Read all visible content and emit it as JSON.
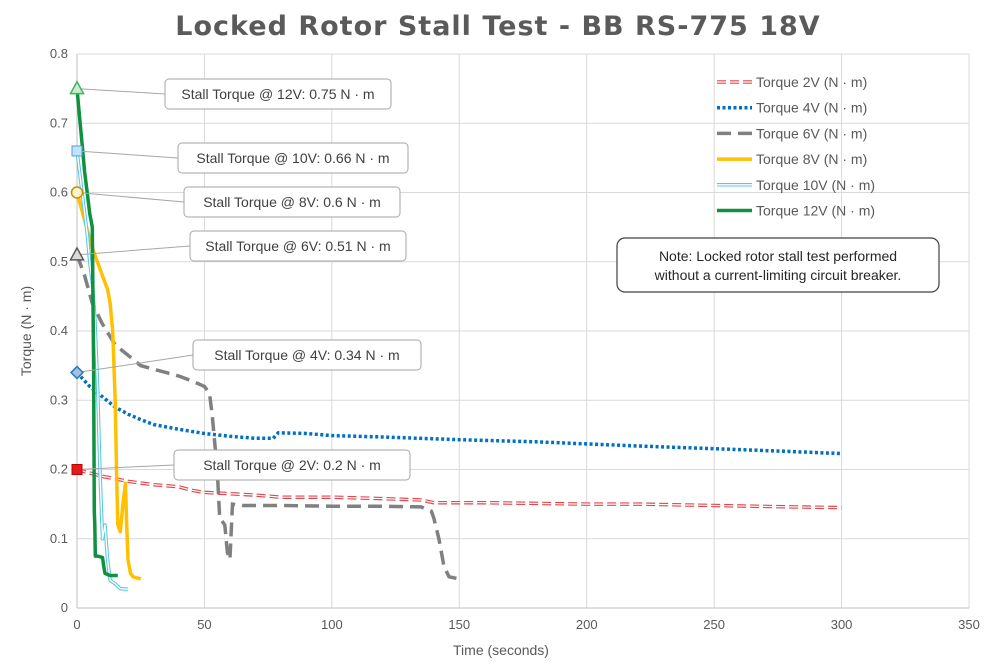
{
  "chart_data": {
    "type": "line",
    "title": "Locked Rotor Stall Test - BB RS-775 18V",
    "xlabel": "Time (seconds)",
    "ylabel": "Torque (N · m)",
    "xlim": [
      0,
      350
    ],
    "ylim": [
      0,
      0.8
    ],
    "x_ticks": [
      0,
      50,
      100,
      150,
      200,
      250,
      300,
      350
    ],
    "y_ticks": [
      0,
      0.1,
      0.2,
      0.3,
      0.4,
      0.5,
      0.6,
      0.7,
      0.8
    ],
    "grid": true,
    "legend_position": "top-right",
    "note": "Note: Locked rotor stall test performed\nwithout a current-limiting circuit breaker.",
    "series": [
      {
        "name": "Torque 2V (N · m)",
        "color": "#e0474c",
        "style": "double-dash",
        "marker": "square",
        "marker_color": "#e21b1b",
        "points": [
          [
            0,
            0.2
          ],
          [
            5,
            0.195
          ],
          [
            10,
            0.19
          ],
          [
            20,
            0.183
          ],
          [
            30,
            0.178
          ],
          [
            40,
            0.175
          ],
          [
            45,
            0.17
          ],
          [
            50,
            0.167
          ],
          [
            60,
            0.165
          ],
          [
            70,
            0.163
          ],
          [
            80,
            0.16
          ],
          [
            100,
            0.16
          ],
          [
            120,
            0.158
          ],
          [
            135,
            0.156
          ],
          [
            140,
            0.152
          ],
          [
            160,
            0.152
          ],
          [
            180,
            0.151
          ],
          [
            200,
            0.15
          ],
          [
            220,
            0.15
          ],
          [
            250,
            0.148
          ],
          [
            280,
            0.146
          ],
          [
            300,
            0.145
          ]
        ],
        "callout": "Stall Torque @ 2V: 0.2 N · m"
      },
      {
        "name": "Torque 4V (N · m)",
        "color": "#0070c0",
        "style": "dotted",
        "marker": "diamond",
        "marker_color": "#5b9bd5",
        "points": [
          [
            0,
            0.34
          ],
          [
            5,
            0.32
          ],
          [
            10,
            0.305
          ],
          [
            15,
            0.29
          ],
          [
            20,
            0.28
          ],
          [
            25,
            0.272
          ],
          [
            30,
            0.265
          ],
          [
            40,
            0.258
          ],
          [
            50,
            0.252
          ],
          [
            60,
            0.248
          ],
          [
            70,
            0.245
          ],
          [
            77,
            0.245
          ],
          [
            79,
            0.253
          ],
          [
            90,
            0.252
          ],
          [
            100,
            0.249
          ],
          [
            120,
            0.247
          ],
          [
            150,
            0.243
          ],
          [
            180,
            0.24
          ],
          [
            200,
            0.237
          ],
          [
            220,
            0.234
          ],
          [
            250,
            0.23
          ],
          [
            280,
            0.226
          ],
          [
            300,
            0.223
          ]
        ],
        "callout": "Stall Torque @ 4V: 0.34 N · m"
      },
      {
        "name": "Torque 6V (N · m)",
        "color": "#808080",
        "style": "dashed",
        "marker": "triangle",
        "marker_color": "#595959",
        "points": [
          [
            0,
            0.51
          ],
          [
            3,
            0.48
          ],
          [
            6,
            0.44
          ],
          [
            10,
            0.41
          ],
          [
            15,
            0.38
          ],
          [
            20,
            0.365
          ],
          [
            25,
            0.35
          ],
          [
            30,
            0.345
          ],
          [
            35,
            0.34
          ],
          [
            40,
            0.335
          ],
          [
            45,
            0.328
          ],
          [
            50,
            0.32
          ],
          [
            52,
            0.31
          ],
          [
            53,
            0.28
          ],
          [
            55,
            0.2
          ],
          [
            56,
            0.13
          ],
          [
            58,
            0.12
          ],
          [
            59,
            0.08
          ],
          [
            60,
            0.07
          ],
          [
            61,
            0.15
          ],
          [
            65,
            0.148
          ],
          [
            80,
            0.148
          ],
          [
            100,
            0.147
          ],
          [
            120,
            0.147
          ],
          [
            135,
            0.146
          ],
          [
            139,
            0.14
          ],
          [
            140,
            0.13
          ],
          [
            142,
            0.1
          ],
          [
            144,
            0.06
          ],
          [
            146,
            0.045
          ],
          [
            150,
            0.042
          ]
        ],
        "callout": "Stall Torque @ 6V: 0.51 N · m"
      },
      {
        "name": "Torque 8V (N · m)",
        "color": "#ffc000",
        "style": "solid",
        "marker": "circle",
        "marker_color": "#f2c94c",
        "points": [
          [
            0,
            0.6
          ],
          [
            3,
            0.56
          ],
          [
            6,
            0.52
          ],
          [
            9,
            0.49
          ],
          [
            12,
            0.46
          ],
          [
            13,
            0.44
          ],
          [
            14,
            0.4
          ],
          [
            15,
            0.3
          ],
          [
            15.5,
            0.2
          ],
          [
            16,
            0.12
          ],
          [
            17,
            0.11
          ],
          [
            18,
            0.15
          ],
          [
            19,
            0.18
          ],
          [
            19.5,
            0.12
          ],
          [
            20,
            0.07
          ],
          [
            21,
            0.05
          ],
          [
            22,
            0.045
          ],
          [
            25,
            0.042
          ]
        ],
        "callout": "Stall Torque @ 8V: 0.6 N · m"
      },
      {
        "name": "Torque 10V (N · m)",
        "color": "#5bc8dc",
        "style": "hollow",
        "marker": "square",
        "marker_color": "#5b9bd5",
        "points": [
          [
            0,
            0.66
          ],
          [
            2,
            0.6
          ],
          [
            4,
            0.54
          ],
          [
            5,
            0.5
          ],
          [
            6,
            0.47
          ],
          [
            7,
            0.42
          ],
          [
            8,
            0.33
          ],
          [
            9,
            0.2
          ],
          [
            10,
            0.1
          ],
          [
            11,
            0.12
          ],
          [
            12,
            0.07
          ],
          [
            13,
            0.04
          ],
          [
            15,
            0.035
          ],
          [
            17,
            0.028
          ],
          [
            20,
            0.027
          ]
        ],
        "callout": "Stall Torque @ 10V: 0.66 N · m"
      },
      {
        "name": "Torque 12V (N · m)",
        "color": "#109040",
        "style": "solid",
        "marker": "triangle",
        "marker_color": "#47b25a",
        "points": [
          [
            0,
            0.75
          ],
          [
            1,
            0.71
          ],
          [
            2,
            0.67
          ],
          [
            3,
            0.63
          ],
          [
            4,
            0.6
          ],
          [
            5,
            0.57
          ],
          [
            6,
            0.55
          ],
          [
            6.5,
            0.35
          ],
          [
            6.8,
            0.14
          ],
          [
            7,
            0.12
          ],
          [
            7.2,
            0.075
          ],
          [
            8,
            0.075
          ],
          [
            10,
            0.073
          ],
          [
            10.5,
            0.06
          ],
          [
            11,
            0.05
          ],
          [
            13,
            0.047
          ],
          [
            16,
            0.047
          ]
        ],
        "callout": "Stall Torque @ 12V: 0.75 N · m"
      }
    ]
  }
}
